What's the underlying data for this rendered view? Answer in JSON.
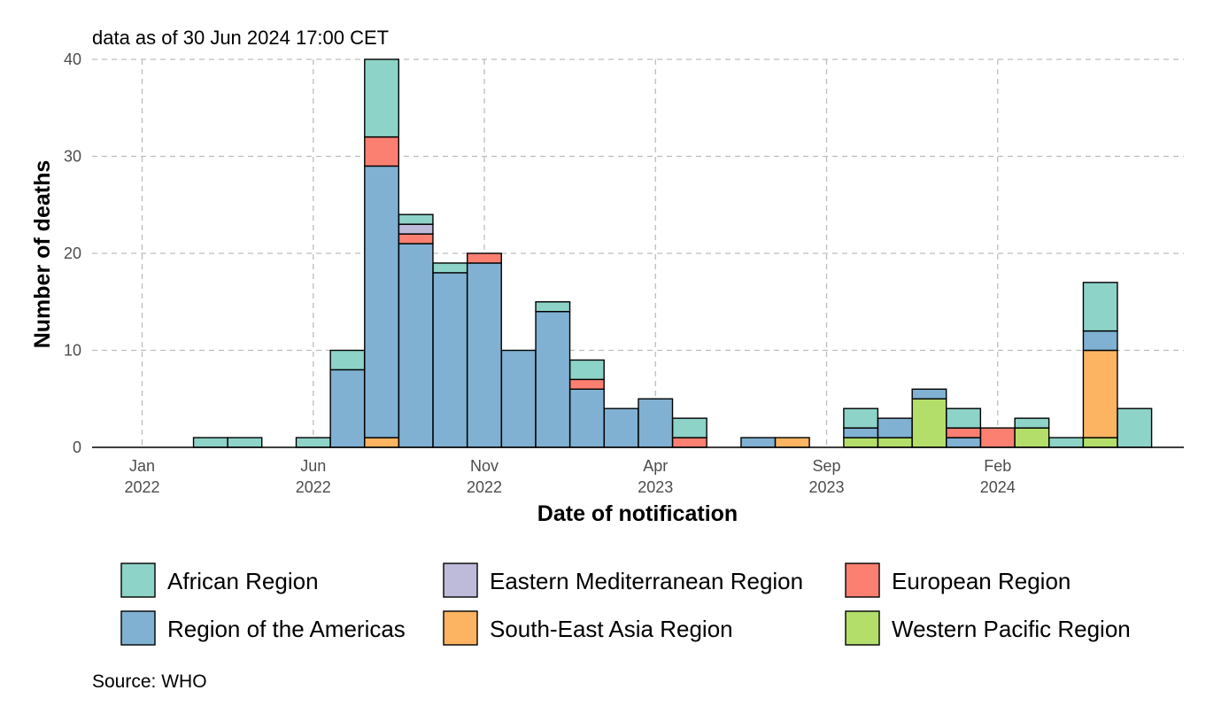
{
  "chart_data": {
    "type": "bar",
    "stacked": true,
    "subtitle": "data as of 30 Jun 2024 17:00 CET",
    "xlabel": "Date of notification",
    "ylabel": "Number of deaths",
    "caption": "Source: WHO",
    "ylim": [
      0,
      40
    ],
    "y_ticks": [
      0,
      10,
      20,
      30,
      40
    ],
    "grid": true,
    "legend_position": "bottom",
    "x_ticks": [
      {
        "line1": "Jan",
        "line2": "2022",
        "month_index": 0
      },
      {
        "line1": "Jun",
        "line2": "2022",
        "month_index": 5
      },
      {
        "line1": "Nov",
        "line2": "2022",
        "month_index": 10
      },
      {
        "line1": "Apr",
        "line2": "2023",
        "month_index": 15
      },
      {
        "line1": "Sep",
        "line2": "2023",
        "month_index": 20
      },
      {
        "line1": "Feb",
        "line2": "2024",
        "month_index": 25
      }
    ],
    "categories": [
      "Mar 2022",
      "Apr 2022",
      "May 2022",
      "Jun 2022",
      "Jul 2022",
      "Aug 2022",
      "Sep 2022",
      "Oct 2022",
      "Nov 2022",
      "Dec 2022",
      "Jan 2023",
      "Feb 2023",
      "Mar 2023",
      "Apr 2023",
      "May 2023",
      "Jun 2023",
      "Jul 2023",
      "Aug 2023",
      "Sep 2023",
      "Oct 2023",
      "Nov 2023",
      "Dec 2023",
      "Jan 2024",
      "Feb 2024",
      "Mar 2024",
      "Apr 2024",
      "May 2024",
      "Jun 2024"
    ],
    "series": [
      {
        "name": "Western Pacific Region",
        "color": "#B3DE69",
        "values": [
          0,
          0,
          0,
          0,
          0,
          0,
          0,
          0,
          0,
          0,
          0,
          0,
          0,
          0,
          0,
          0,
          0,
          0,
          0,
          1,
          1,
          5,
          0,
          0,
          2,
          0,
          1,
          0
        ]
      },
      {
        "name": "South-East Asia Region",
        "color": "#FDB462",
        "values": [
          0,
          0,
          0,
          0,
          0,
          1,
          0,
          0,
          0,
          0,
          0,
          0,
          0,
          0,
          0,
          0,
          0,
          1,
          0,
          0,
          0,
          0,
          0,
          0,
          0,
          0,
          9,
          0
        ]
      },
      {
        "name": "Region of the Americas",
        "color": "#80B1D3",
        "values": [
          0,
          0,
          0,
          0,
          8,
          28,
          21,
          18,
          19,
          10,
          14,
          6,
          4,
          5,
          0,
          0,
          1,
          0,
          0,
          1,
          2,
          1,
          1,
          0,
          0,
          0,
          2,
          0
        ]
      },
      {
        "name": "European Region",
        "color": "#FB8072",
        "values": [
          0,
          0,
          0,
          0,
          0,
          3,
          1,
          0,
          1,
          0,
          0,
          1,
          0,
          0,
          1,
          0,
          0,
          0,
          0,
          0,
          0,
          0,
          1,
          2,
          0,
          0,
          0,
          0
        ]
      },
      {
        "name": "Eastern Mediterranean Region",
        "color": "#BEBADA",
        "values": [
          0,
          0,
          0,
          0,
          0,
          0,
          1,
          0,
          0,
          0,
          0,
          0,
          0,
          0,
          0,
          0,
          0,
          0,
          0,
          0,
          0,
          0,
          0,
          0,
          0,
          0,
          0,
          0
        ]
      },
      {
        "name": "African Region",
        "color": "#8DD3C7",
        "values": [
          1,
          1,
          0,
          1,
          2,
          8,
          1,
          1,
          0,
          0,
          1,
          2,
          0,
          0,
          2,
          0,
          0,
          0,
          0,
          2,
          0,
          0,
          2,
          0,
          1,
          1,
          5,
          4
        ]
      }
    ],
    "legend": [
      {
        "label": "African Region",
        "color": "#8DD3C7"
      },
      {
        "label": "Eastern Mediterranean Region",
        "color": "#BEBADA"
      },
      {
        "label": "European Region",
        "color": "#FB8072"
      },
      {
        "label": "Region of the Americas",
        "color": "#80B1D3"
      },
      {
        "label": "South-East Asia Region",
        "color": "#FDB462"
      },
      {
        "label": "Western Pacific Region",
        "color": "#B3DE69"
      }
    ]
  }
}
